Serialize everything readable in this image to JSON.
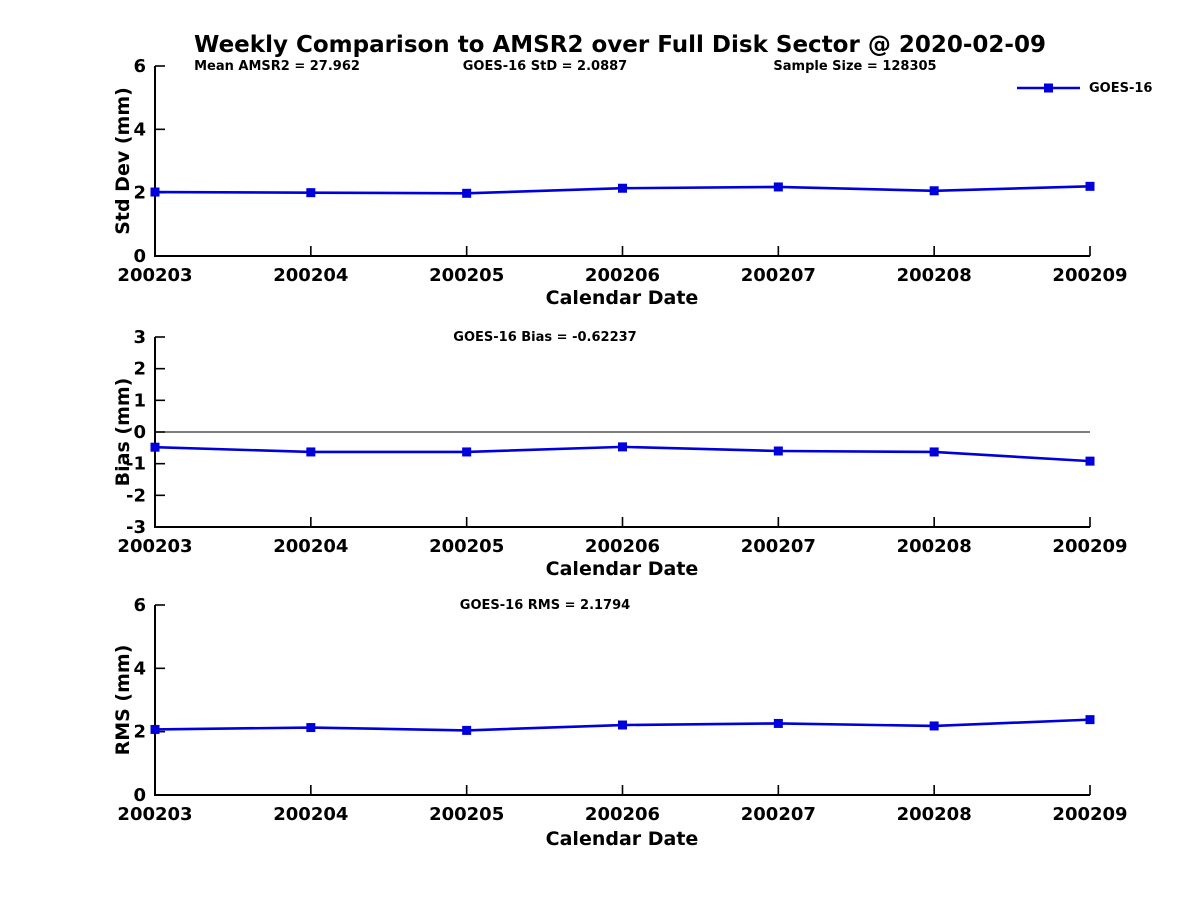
{
  "figure_title": "Weekly Comparison to AMSR2 over Full Disk Sector @ 2020-02-09",
  "colors": {
    "series": "#0000dd",
    "axis": "#000000",
    "zero_line": "#303030",
    "text": "#000000",
    "background": "#ffffff"
  },
  "chart_data": [
    {
      "type": "line",
      "name": "std-dev",
      "annotations": [
        "Mean AMSR2 = 27.962",
        "GOES-16 StD = 2.0887",
        "Sample Size = 128305"
      ],
      "ylabel": "Std Dev (mm)",
      "xlabel": "Calendar Date",
      "categories": [
        "200203",
        "200204",
        "200205",
        "200206",
        "200207",
        "200208",
        "200209"
      ],
      "series": [
        {
          "name": "GOES-16",
          "values": [
            2.02,
            2.0,
            1.98,
            2.14,
            2.18,
            2.06,
            2.2
          ]
        }
      ],
      "ylim": [
        0,
        6
      ],
      "yticks": [
        0,
        2,
        4,
        6
      ],
      "zero_line": false,
      "grid": false,
      "legend": {
        "label": "GOES-16",
        "position": "top-right"
      }
    },
    {
      "type": "line",
      "name": "bias",
      "annotations": [
        "GOES-16 Bias  = -0.62237"
      ],
      "ylabel": "Bias (mm)",
      "xlabel": "Calendar Date",
      "categories": [
        "200203",
        "200204",
        "200205",
        "200206",
        "200207",
        "200208",
        "200209"
      ],
      "series": [
        {
          "name": "GOES-16",
          "values": [
            -0.48,
            -0.63,
            -0.63,
            -0.47,
            -0.6,
            -0.63,
            -0.92
          ]
        }
      ],
      "ylim": [
        -3,
        3
      ],
      "yticks": [
        -3,
        -2,
        -1,
        0,
        1,
        2,
        3
      ],
      "zero_line": true,
      "grid": false
    },
    {
      "type": "line",
      "name": "rms",
      "annotations": [
        "GOES-16 RMS = 2.1794"
      ],
      "ylabel": "RMS (mm)",
      "xlabel": "Calendar Date",
      "categories": [
        "200203",
        "200204",
        "200205",
        "200206",
        "200207",
        "200208",
        "200209"
      ],
      "series": [
        {
          "name": "GOES-16",
          "values": [
            2.07,
            2.13,
            2.04,
            2.21,
            2.26,
            2.18,
            2.38
          ]
        }
      ],
      "ylim": [
        0,
        6
      ],
      "yticks": [
        0,
        2,
        4,
        6
      ],
      "zero_line": false,
      "grid": false
    }
  ]
}
